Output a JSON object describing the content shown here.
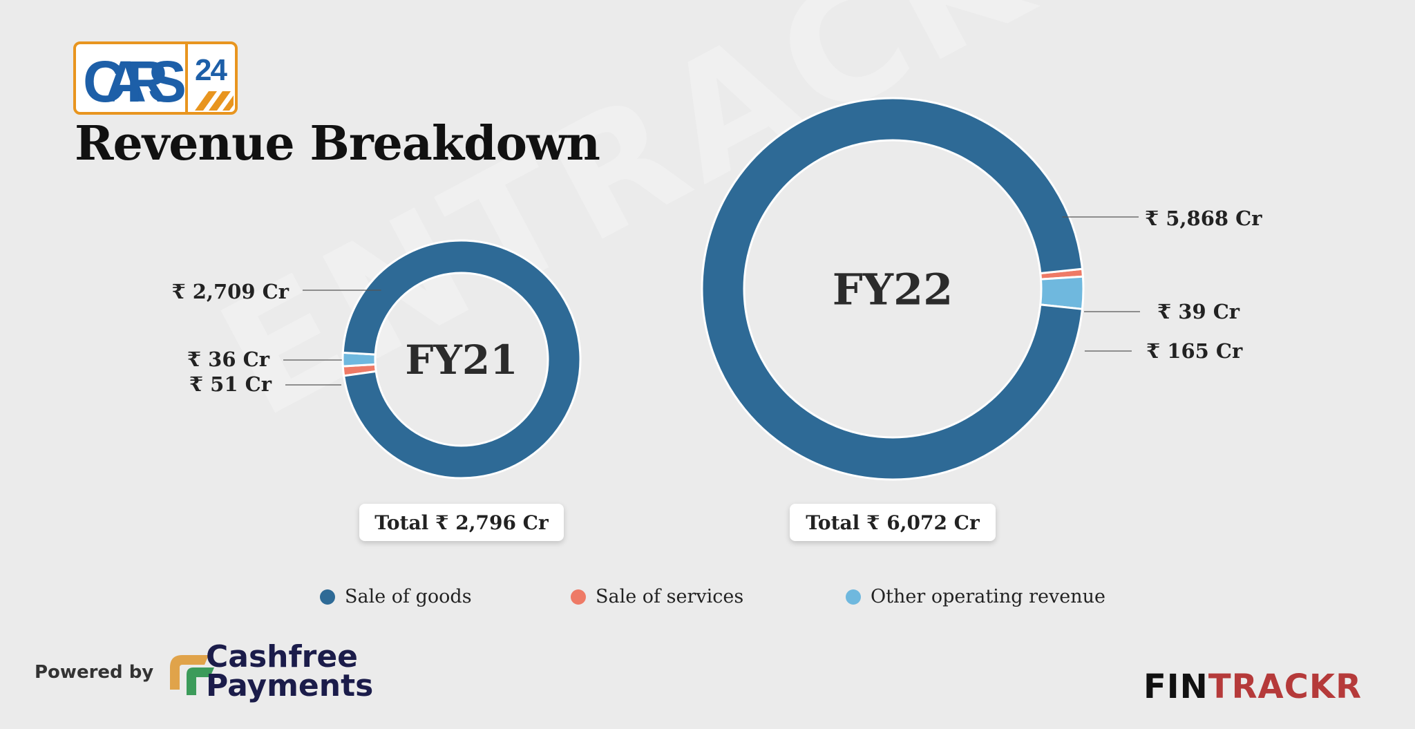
{
  "header": {
    "logo_text": "CARS 24",
    "title": "Revenue Breakdown"
  },
  "watermark": "ENTRACKR",
  "colors": {
    "sale_of_goods": "#2e6a96",
    "sale_of_services": "#ee7a66",
    "other_operating_revenue": "#6fb8de"
  },
  "chart_data": [
    {
      "type": "pie",
      "title": "FY21",
      "categories": [
        "Sale of goods",
        "Sale of services",
        "Other operating revenue"
      ],
      "values": [
        2709,
        36,
        51
      ],
      "value_labels": [
        "₹ 2,709 Cr",
        "₹ 36 Cr",
        "₹ 51 Cr"
      ],
      "total_label": "Total ₹ 2,796 Cr"
    },
    {
      "type": "pie",
      "title": "FY22",
      "categories": [
        "Sale of goods",
        "Sale of services",
        "Other operating revenue"
      ],
      "values": [
        5868,
        39,
        165
      ],
      "value_labels": [
        "₹ 5,868 Cr",
        "₹ 39 Cr",
        "₹ 165 Cr"
      ],
      "total_label": "Total ₹ 6,072 Cr"
    }
  ],
  "legend": [
    "Sale of goods",
    "Sale of services",
    "Other operating revenue"
  ],
  "footer": {
    "powered_by": "Powered by",
    "sponsor_line1": "Cashfree",
    "sponsor_line2": "Payments",
    "brand_part1": "FIN",
    "brand_part2": "TRACKR"
  }
}
